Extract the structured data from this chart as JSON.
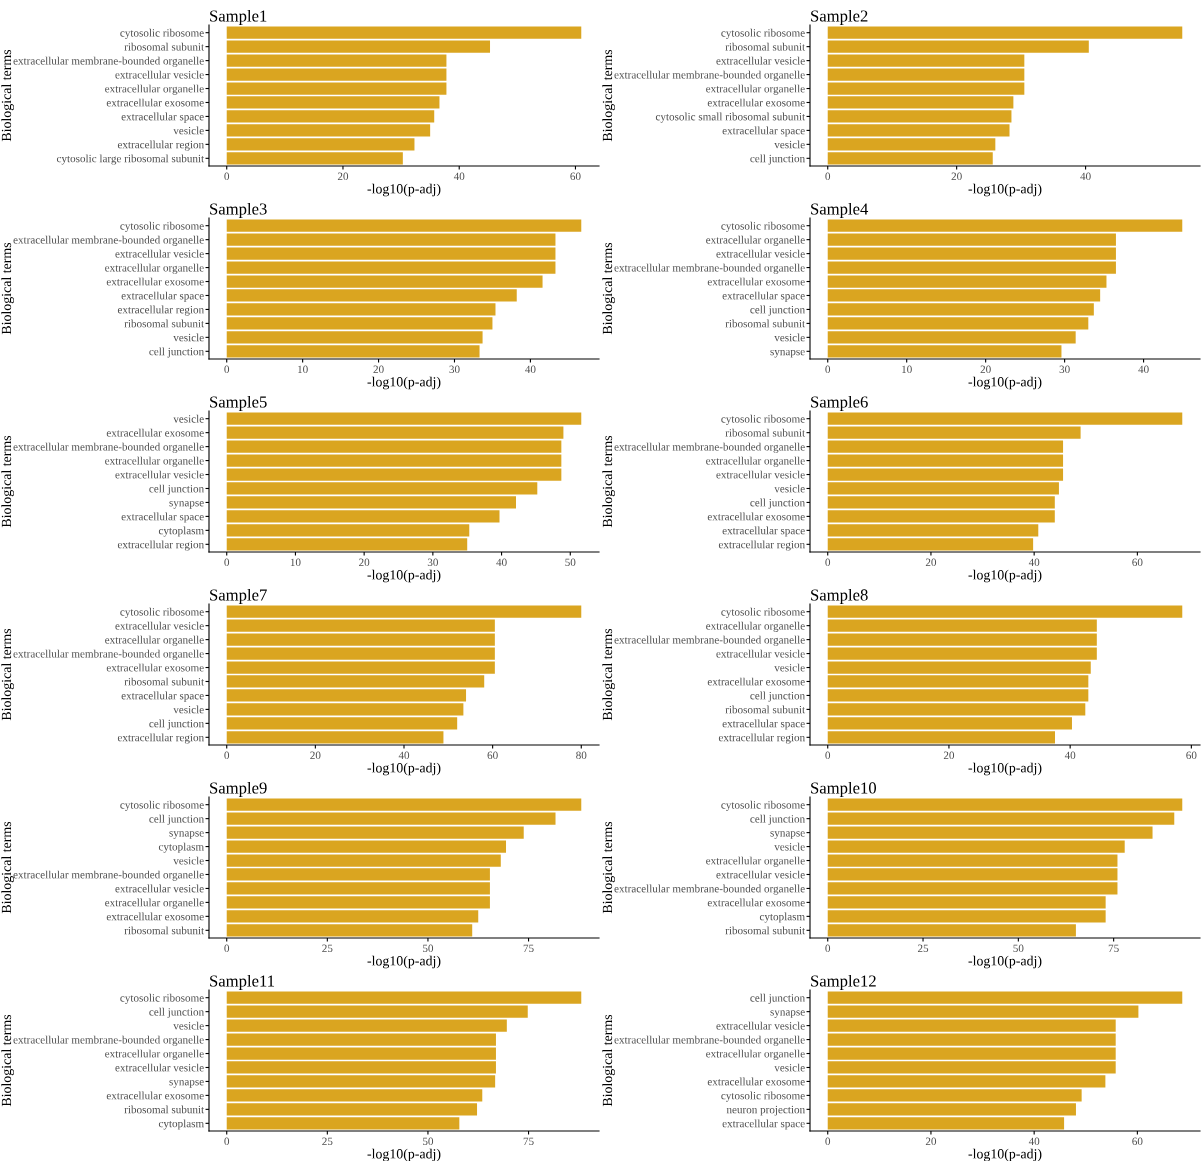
{
  "chart_data": [
    {
      "type": "bar",
      "orientation": "horizontal",
      "title": "Sample1",
      "xlabel": "-log10(p-adj)",
      "ylabel": "Biological terms",
      "color": "#daa520",
      "xlim": [
        -3.05,
        64.05
      ],
      "xticks": [
        0,
        20,
        40,
        60
      ],
      "categories": [
        "cytosolic ribosome",
        "ribosomal subunit",
        "extracellular membrane-bounded organelle",
        "extracellular vesicle",
        "extracellular organelle",
        "extracellular exosome",
        "extracellular space",
        "vesicle",
        "extracellular region",
        "cytosolic large ribosomal subunit"
      ],
      "values": [
        61.0,
        45.3,
        37.8,
        37.8,
        37.8,
        36.6,
        35.7,
        35.0,
        32.3,
        30.3
      ]
    },
    {
      "type": "bar",
      "orientation": "horizontal",
      "title": "Sample2",
      "xlabel": "-log10(p-adj)",
      "ylabel": "Biological terms",
      "color": "#daa520",
      "xlim": [
        -2.75,
        57.75
      ],
      "xticks": [
        0,
        20,
        40
      ],
      "categories": [
        "cytosolic ribosome",
        "ribosomal subunit",
        "extracellular vesicle",
        "extracellular membrane-bounded organelle",
        "extracellular organelle",
        "extracellular exosome",
        "cytosolic small ribosomal subunit",
        "extracellular space",
        "vesicle",
        "cell junction"
      ],
      "values": [
        55.0,
        40.5,
        30.5,
        30.5,
        30.5,
        28.8,
        28.5,
        28.2,
        26.0,
        25.6
      ]
    },
    {
      "type": "bar",
      "orientation": "horizontal",
      "title": "Sample3",
      "xlabel": "-log10(p-adj)",
      "ylabel": "Biological terms",
      "color": "#daa520",
      "xlim": [
        -2.335,
        49.035
      ],
      "xticks": [
        0,
        10,
        20,
        30,
        40
      ],
      "categories": [
        "cytosolic ribosome",
        "extracellular membrane-bounded organelle",
        "extracellular vesicle",
        "extracellular organelle",
        "extracellular exosome",
        "extracellular space",
        "extracellular region",
        "ribosomal subunit",
        "vesicle",
        "cell junction"
      ],
      "values": [
        46.7,
        43.3,
        43.3,
        43.3,
        41.6,
        38.2,
        35.4,
        35.0,
        33.7,
        33.3
      ]
    },
    {
      "type": "bar",
      "orientation": "horizontal",
      "title": "Sample4",
      "xlabel": "-log10(p-adj)",
      "ylabel": "Biological terms",
      "color": "#daa520",
      "xlim": [
        -2.245,
        47.145
      ],
      "xticks": [
        0,
        10,
        20,
        30,
        40
      ],
      "categories": [
        "cytosolic ribosome",
        "extracellular organelle",
        "extracellular vesicle",
        "extracellular membrane-bounded organelle",
        "extracellular exosome",
        "extracellular space",
        "cell junction",
        "ribosomal subunit",
        "vesicle",
        "synapse"
      ],
      "values": [
        44.9,
        36.5,
        36.5,
        36.5,
        35.3,
        34.5,
        33.7,
        33.0,
        31.4,
        29.6
      ]
    },
    {
      "type": "bar",
      "orientation": "horizontal",
      "title": "Sample5",
      "xlabel": "-log10(p-adj)",
      "ylabel": "Biological terms",
      "color": "#daa520",
      "xlim": [
        -2.58,
        54.18
      ],
      "xticks": [
        0,
        10,
        20,
        30,
        40,
        50
      ],
      "categories": [
        "vesicle",
        "extracellular exosome",
        "extracellular membrane-bounded organelle",
        "extracellular organelle",
        "extracellular vesicle",
        "cell junction",
        "synapse",
        "extracellular space",
        "cytoplasm",
        "extracellular region"
      ],
      "values": [
        51.6,
        49.0,
        48.7,
        48.7,
        48.7,
        45.2,
        42.1,
        39.7,
        35.3,
        35.0
      ]
    },
    {
      "type": "bar",
      "orientation": "horizontal",
      "title": "Sample6",
      "xlabel": "-log10(p-adj)",
      "ylabel": "Biological terms",
      "color": "#daa520",
      "xlim": [
        -3.435,
        72.135
      ],
      "xticks": [
        0,
        20,
        40,
        60
      ],
      "categories": [
        "cytosolic ribosome",
        "ribosomal subunit",
        "extracellular membrane-bounded organelle",
        "extracellular organelle",
        "extracellular vesicle",
        "vesicle",
        "cell junction",
        "extracellular exosome",
        "extracellular space",
        "extracellular region"
      ],
      "values": [
        68.7,
        49.0,
        45.6,
        45.6,
        45.6,
        44.8,
        44.0,
        44.0,
        40.8,
        39.8
      ]
    },
    {
      "type": "bar",
      "orientation": "horizontal",
      "title": "Sample7",
      "xlabel": "-log10(p-adj)",
      "ylabel": "Biological terms",
      "color": "#daa520",
      "xlim": [
        -4.0,
        84.0
      ],
      "xticks": [
        0,
        20,
        40,
        60,
        80
      ],
      "categories": [
        "cytosolic ribosome",
        "extracellular vesicle",
        "extracellular organelle",
        "extracellular membrane-bounded organelle",
        "extracellular exosome",
        "ribosomal subunit",
        "extracellular space",
        "vesicle",
        "cell junction",
        "extracellular region"
      ],
      "values": [
        80.0,
        60.5,
        60.5,
        60.5,
        60.5,
        58.1,
        54.0,
        53.4,
        52.0,
        48.9
      ]
    },
    {
      "type": "bar",
      "orientation": "horizontal",
      "title": "Sample8",
      "xlabel": "-log10(p-adj)",
      "ylabel": "Biological terms",
      "color": "#daa520",
      "xlim": [
        -2.925,
        61.425
      ],
      "xticks": [
        0,
        20,
        40,
        60
      ],
      "categories": [
        "cytosolic ribosome",
        "extracellular organelle",
        "extracellular membrane-bounded organelle",
        "extracellular vesicle",
        "vesicle",
        "extracellular exosome",
        "cell junction",
        "ribosomal subunit",
        "extracellular space",
        "extracellular region"
      ],
      "values": [
        58.5,
        44.4,
        44.4,
        44.4,
        43.4,
        43.0,
        43.0,
        42.5,
        40.3,
        37.5
      ]
    },
    {
      "type": "bar",
      "orientation": "horizontal",
      "title": "Sample9",
      "xlabel": "-log10(p-adj)",
      "ylabel": "Biological terms",
      "color": "#daa520",
      "xlim": [
        -4.405,
        92.505
      ],
      "xticks": [
        0,
        25,
        50,
        75
      ],
      "categories": [
        "cytosolic ribosome",
        "cell junction",
        "synapse",
        "cytoplasm",
        "vesicle",
        "extracellular membrane-bounded organelle",
        "extracellular vesicle",
        "extracellular organelle",
        "extracellular exosome",
        "ribosomal subunit"
      ],
      "values": [
        88.1,
        81.7,
        73.8,
        69.4,
        68.1,
        65.4,
        65.4,
        65.4,
        62.5,
        61.0
      ]
    },
    {
      "type": "bar",
      "orientation": "horizontal",
      "title": "Sample10",
      "xlabel": "-log10(p-adj)",
      "ylabel": "Biological terms",
      "color": "#daa520",
      "xlim": [
        -4.65,
        97.65
      ],
      "xticks": [
        0,
        25,
        50,
        75
      ],
      "categories": [
        "cytosolic ribosome",
        "cell junction",
        "synapse",
        "vesicle",
        "extracellular organelle",
        "extracellular vesicle",
        "extracellular membrane-bounded organelle",
        "extracellular exosome",
        "cytoplasm",
        "ribosomal subunit"
      ],
      "values": [
        93.0,
        90.9,
        85.2,
        77.9,
        76.0,
        76.0,
        76.0,
        72.9,
        72.9,
        65.1
      ]
    },
    {
      "type": "bar",
      "orientation": "horizontal",
      "title": "Sample11",
      "xlabel": "-log10(p-adj)",
      "ylabel": "Biological terms",
      "color": "#daa520",
      "xlim": [
        -4.405,
        92.505
      ],
      "xticks": [
        0,
        25,
        50,
        75
      ],
      "categories": [
        "cytosolic ribosome",
        "cell junction",
        "vesicle",
        "extracellular membrane-bounded organelle",
        "extracellular organelle",
        "extracellular vesicle",
        "synapse",
        "extracellular exosome",
        "ribosomal subunit",
        "cytoplasm"
      ],
      "values": [
        88.1,
        74.8,
        69.6,
        66.9,
        66.9,
        66.9,
        66.7,
        63.5,
        62.2,
        57.8
      ]
    },
    {
      "type": "bar",
      "orientation": "horizontal",
      "title": "Sample12",
      "xlabel": "-log10(p-adj)",
      "ylabel": "Biological terms",
      "color": "#daa520",
      "xlim": [
        -3.435,
        72.135
      ],
      "xticks": [
        0,
        20,
        40,
        60
      ],
      "categories": [
        "cell junction",
        "synapse",
        "extracellular vesicle",
        "extracellular membrane-bounded organelle",
        "extracellular organelle",
        "vesicle",
        "extracellular exosome",
        "cytosolic ribosome",
        "neuron projection",
        "extracellular space"
      ],
      "values": [
        68.7,
        60.2,
        55.8,
        55.8,
        55.8,
        55.8,
        53.8,
        49.2,
        48.1,
        45.8
      ]
    }
  ]
}
